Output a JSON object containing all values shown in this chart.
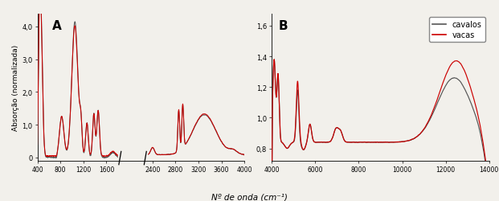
{
  "panel_A": {
    "label": "A",
    "xlim": [
      400,
      4000
    ],
    "ylim": [
      -0.1,
      4.4
    ],
    "xticks": [
      400,
      800,
      1200,
      1600,
      2400,
      2800,
      3200,
      3600,
      4000
    ],
    "xtick_labels": [
      "400",
      "800",
      "1200",
      "1600",
      "2400",
      "2800",
      "3200",
      "3600",
      "4000"
    ],
    "yticks": [
      0,
      1.0,
      2.0,
      3.0,
      4.0
    ],
    "ytick_labels": [
      "0",
      "1,0",
      "2,0",
      "3,0",
      "4,0"
    ],
    "ylabel": "Absorção (normalizada)",
    "break_start": 1800,
    "break_end": 2300
  },
  "panel_B": {
    "label": "B",
    "xlim": [
      4000,
      14000
    ],
    "ylim": [
      0.72,
      1.68
    ],
    "xticks": [
      4000,
      6000,
      8000,
      10000,
      12000,
      14000
    ],
    "xtick_labels": [
      "4000",
      "6000",
      "8000",
      "10000",
      "12000",
      "14000"
    ],
    "yticks": [
      0.8,
      1.0,
      1.2,
      1.4,
      1.6
    ],
    "ytick_labels": [
      "0,8",
      "1,0",
      "1,2",
      "1,4",
      "1,6"
    ],
    "legend_labels": [
      "cavalos",
      "vacas"
    ]
  },
  "xlabel": "Nº de onda (cm⁻¹)",
  "colors": {
    "cavalos": "#555555",
    "vacas": "#cc0000"
  },
  "background": "#f2f0eb"
}
